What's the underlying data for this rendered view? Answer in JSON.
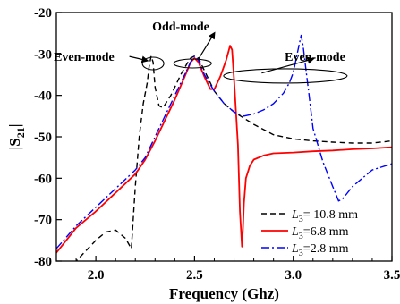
{
  "chart_data": {
    "type": "line",
    "xlabel": "Frequency (Ghz)",
    "ylabel_main": "|S",
    "ylabel_sub": "21",
    "ylabel_end": "|",
    "xlim": [
      1.8,
      3.5
    ],
    "ylim": [
      -80,
      -20
    ],
    "x_ticks": [
      {
        "value": 2.0,
        "label": "2.0"
      },
      {
        "value": 2.5,
        "label": "2.5"
      },
      {
        "value": 3.0,
        "label": "3.0"
      },
      {
        "value": 3.5,
        "label": "3.5"
      }
    ],
    "y_ticks": [
      {
        "value": -20,
        "label": "-20"
      },
      {
        "value": -30,
        "label": "-30"
      },
      {
        "value": -40,
        "label": "-40"
      },
      {
        "value": -50,
        "label": "-50"
      },
      {
        "value": -60,
        "label": "-60"
      },
      {
        "value": -70,
        "label": "-70"
      },
      {
        "value": -80,
        "label": "-80"
      }
    ],
    "legend": {
      "placement": "bottom-right",
      "entries": [
        {
          "prefix": "L",
          "sub": "3",
          "suffix": "= 10.8 mm"
        },
        {
          "prefix": "L",
          "sub": "3",
          "suffix": "=6.8 mm"
        },
        {
          "prefix": "L",
          "sub": "3",
          "suffix": "=2.8 mm"
        }
      ]
    },
    "annotations": [
      {
        "text": "Even-mode",
        "at": [
          1.94,
          -31.7
        ]
      },
      {
        "text": "Odd-mode",
        "at": [
          2.43,
          -24.3
        ]
      },
      {
        "text": "Even-mode",
        "at": [
          3.11,
          -31.7
        ]
      }
    ],
    "series": [
      {
        "color": "#000000",
        "dash": "dash",
        "x": [
          1.8,
          1.9,
          2.0,
          2.05,
          2.1,
          2.15,
          2.18,
          2.2,
          2.22,
          2.24,
          2.26,
          2.27,
          2.28,
          2.29,
          2.3,
          2.32,
          2.34,
          2.36,
          2.38,
          2.4,
          2.43,
          2.46,
          2.48,
          2.5,
          2.52,
          2.55,
          2.6,
          2.65,
          2.7,
          2.8,
          2.9,
          3.0,
          3.1,
          3.2,
          3.3,
          3.4,
          3.5
        ],
        "y": [
          -82,
          -80,
          -75,
          -73,
          -72.5,
          -74.5,
          -77,
          -62,
          -50,
          -42,
          -37,
          -33,
          -30.5,
          -32,
          -38,
          -42.5,
          -43,
          -41.5,
          -40,
          -38,
          -35,
          -32.5,
          -31,
          -30.5,
          -31,
          -34,
          -39,
          -42,
          -44,
          -47,
          -49.5,
          -50.5,
          -51,
          -51.3,
          -51.5,
          -51.5,
          -51
        ]
      },
      {
        "color": "#ff0000",
        "dash": "solid",
        "x": [
          1.8,
          1.9,
          2.0,
          2.1,
          2.2,
          2.25,
          2.3,
          2.35,
          2.4,
          2.45,
          2.48,
          2.5,
          2.52,
          2.55,
          2.58,
          2.6,
          2.63,
          2.66,
          2.68,
          2.69,
          2.7,
          2.72,
          2.73,
          2.74,
          2.745,
          2.75,
          2.76,
          2.78,
          2.8,
          2.85,
          2.9,
          3.0,
          3.1,
          3.2,
          3.3,
          3.4,
          3.5
        ],
        "y": [
          -78,
          -72,
          -68,
          -63.5,
          -59,
          -55.5,
          -51,
          -46,
          -41,
          -35.5,
          -32,
          -31,
          -32,
          -35.5,
          -38.5,
          -38.5,
          -35.5,
          -31.5,
          -28,
          -29,
          -36,
          -52,
          -68,
          -76.5,
          -72,
          -66,
          -60,
          -57,
          -55.5,
          -54.5,
          -54,
          -53.8,
          -53.5,
          -53.3,
          -53,
          -52.8,
          -52.5
        ]
      },
      {
        "color": "#0000ff",
        "dash": "dashdot",
        "x": [
          1.8,
          1.9,
          2.0,
          2.1,
          2.2,
          2.25,
          2.3,
          2.35,
          2.4,
          2.45,
          2.48,
          2.5,
          2.52,
          2.55,
          2.6,
          2.65,
          2.7,
          2.75,
          2.8,
          2.85,
          2.9,
          2.95,
          2.98,
          3.0,
          3.02,
          3.04,
          3.05,
          3.06,
          3.08,
          3.1,
          3.15,
          3.2,
          3.23,
          3.25,
          3.3,
          3.35,
          3.4,
          3.5
        ],
        "y": [
          -77,
          -71.5,
          -67,
          -62.5,
          -58,
          -55,
          -50,
          -45,
          -40,
          -35,
          -32,
          -30.5,
          -31.5,
          -35,
          -39,
          -42,
          -44,
          -45,
          -44.5,
          -43.5,
          -42,
          -39.5,
          -37,
          -34.5,
          -30,
          -25.5,
          -28,
          -32,
          -40,
          -48,
          -56,
          -62,
          -65.5,
          -65,
          -62,
          -60,
          -58,
          -56.5
        ]
      }
    ]
  }
}
